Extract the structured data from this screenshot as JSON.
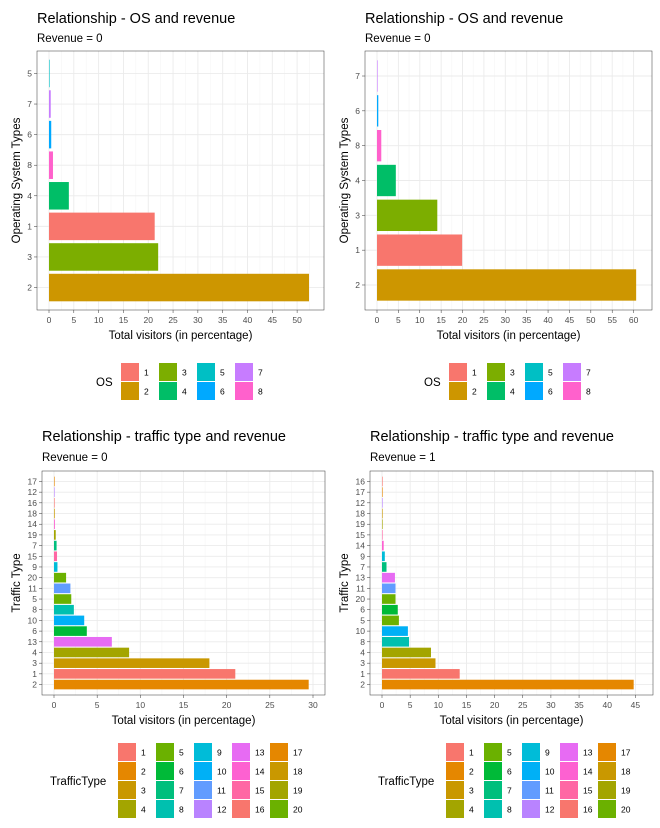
{
  "chart_data": [
    {
      "type": "bar",
      "orientation": "horizontal",
      "title": "Relationship - OS and revenue",
      "subtitle": "Revenue = 0",
      "xlabel": "Total visitors (in percentage)",
      "ylabel": "Operating System Types",
      "xlim": [
        0,
        53
      ],
      "xticks": [
        "0",
        "5",
        "10",
        "15",
        "20",
        "25",
        "30",
        "35",
        "40",
        "45",
        "50"
      ],
      "categories": [
        "5",
        "7",
        "6",
        "8",
        "4",
        "1",
        "3",
        "2"
      ],
      "values": [
        0.05,
        0.35,
        0.45,
        0.8,
        4.0,
        21.3,
        22.0,
        52.4
      ],
      "fill_keys": [
        "5",
        "7",
        "6",
        "8",
        "4",
        "1",
        "3",
        "2"
      ],
      "legend_title": "OS",
      "legend_items": [
        "1",
        "2",
        "3",
        "4",
        "5",
        "6",
        "7",
        "8"
      ],
      "grid": true
    },
    {
      "type": "bar",
      "orientation": "horizontal",
      "title": "Relationship - OS and revenue",
      "subtitle": "Revenue = 0",
      "xlabel": "Total visitors (in percentage)",
      "ylabel": "Operating System Types",
      "xlim": [
        0,
        61.5
      ],
      "xticks": [
        "0",
        "5",
        "10",
        "15",
        "20",
        "25",
        "30",
        "35",
        "40",
        "45",
        "50",
        "55",
        "60"
      ],
      "categories": [
        "7",
        "6",
        "8",
        "4",
        "3",
        "1",
        "2"
      ],
      "values": [
        0.05,
        0.3,
        1.0,
        4.4,
        14.1,
        19.9,
        60.6
      ],
      "fill_keys": [
        "7",
        "6",
        "8",
        "4",
        "3",
        "1",
        "2"
      ],
      "legend_title": "OS",
      "legend_items": [
        "1",
        "2",
        "3",
        "4",
        "5",
        "6",
        "7",
        "8"
      ],
      "grid": true
    },
    {
      "type": "bar",
      "orientation": "horizontal",
      "title": "Relationship - traffic type and revenue",
      "subtitle": "Revenue = 0",
      "xlabel": "Total visitors (in percentage)",
      "ylabel": "Traffic Type",
      "xlim": [
        0,
        30
      ],
      "xticks": [
        "0",
        "5",
        "10",
        "15",
        "20",
        "25",
        "30"
      ],
      "categories": [
        "17",
        "12",
        "16",
        "18",
        "14",
        "19",
        "7",
        "15",
        "9",
        "20",
        "11",
        "5",
        "8",
        "10",
        "6",
        "13",
        "4",
        "3",
        "1",
        "2"
      ],
      "values": [
        0.01,
        0.02,
        0.02,
        0.08,
        0.1,
        0.2,
        0.3,
        0.35,
        0.4,
        1.4,
        1.9,
        2.0,
        2.3,
        3.5,
        3.8,
        6.7,
        8.7,
        18.0,
        21.0,
        29.5
      ],
      "fill_keys": [
        "17",
        "12",
        "16",
        "18",
        "14",
        "19",
        "7",
        "15",
        "9",
        "20",
        "11",
        "5",
        "8",
        "10",
        "6",
        "13",
        "4",
        "3",
        "1",
        "2"
      ],
      "legend_title": "TrafficType",
      "legend_items": [
        "1",
        "2",
        "3",
        "4",
        "5",
        "6",
        "7",
        "8",
        "9",
        "10",
        "11",
        "12",
        "13",
        "14",
        "15",
        "16",
        "17",
        "18",
        "19",
        "20"
      ],
      "grid": true
    },
    {
      "type": "bar",
      "orientation": "horizontal",
      "title": "Relationship - traffic type and revenue",
      "subtitle": "Revenue = 1",
      "xlabel": "Total visitors (in percentage)",
      "ylabel": "Traffic Type",
      "xlim": [
        0,
        46
      ],
      "xticks": [
        "0",
        "5",
        "10",
        "15",
        "20",
        "25",
        "30",
        "35",
        "40",
        "45"
      ],
      "categories": [
        "16",
        "17",
        "12",
        "18",
        "19",
        "15",
        "14",
        "9",
        "7",
        "13",
        "11",
        "20",
        "6",
        "5",
        "10",
        "8",
        "4",
        "3",
        "1",
        "2"
      ],
      "values": [
        0.01,
        0.02,
        0.02,
        0.03,
        0.04,
        0.1,
        0.3,
        0.5,
        0.8,
        2.3,
        2.4,
        2.4,
        2.8,
        3.0,
        4.6,
        4.8,
        8.7,
        9.5,
        13.8,
        44.7
      ],
      "fill_keys": [
        "16",
        "17",
        "12",
        "18",
        "19",
        "15",
        "14",
        "9",
        "7",
        "13",
        "11",
        "20",
        "6",
        "5",
        "10",
        "8",
        "4",
        "3",
        "1",
        "2"
      ],
      "legend_title": "TrafficType",
      "legend_items": [
        "1",
        "2",
        "3",
        "4",
        "5",
        "6",
        "7",
        "8",
        "9",
        "10",
        "11",
        "12",
        "13",
        "14",
        "15",
        "16",
        "17",
        "18",
        "19",
        "20"
      ],
      "grid": true
    }
  ],
  "colors": {
    "os": {
      "1": "#F8766D",
      "2": "#CD9600",
      "3": "#7CAE00",
      "4": "#00BE67",
      "5": "#00BFC4",
      "6": "#00A9FF",
      "7": "#C77CFF",
      "8": "#FF61CC"
    },
    "traffic": {
      "1": "#F8766D",
      "2": "#E58700",
      "3": "#C99800",
      "4": "#A3A500",
      "5": "#6BB100",
      "6": "#00BA38",
      "7": "#00BF7D",
      "8": "#00C0AF",
      "9": "#00BCD8",
      "10": "#00B0F6",
      "11": "#619CFF",
      "12": "#B983FF",
      "13": "#E76BF3",
      "14": "#FD61D1",
      "15": "#FF67A4",
      "16": "#F8766D",
      "17": "#E58700",
      "18": "#C99800",
      "19": "#A3A500",
      "20": "#6BB100"
    },
    "panel_border": "#333333",
    "grid_major": "#ebebeb",
    "grid_minor": "#f5f5f5"
  }
}
